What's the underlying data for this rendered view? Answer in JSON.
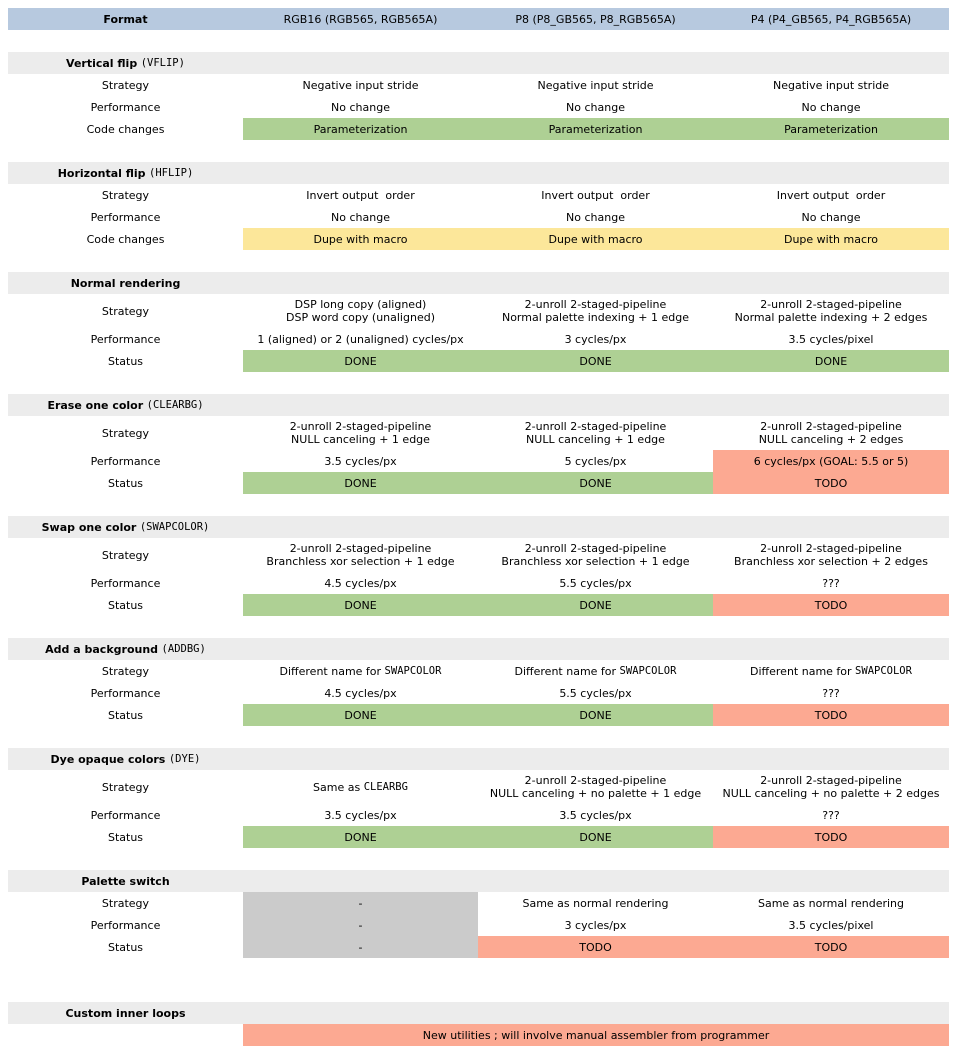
{
  "colors": {
    "header_bg": "#b7c9df",
    "section_bg": "#ececec",
    "done_green": "#aed094",
    "macro_yellow": "#fce79a",
    "todo_red": "#fca992",
    "na_gray": "#cbcbcb"
  },
  "header": {
    "format_label": "Format",
    "col1": {
      "name": "RGB16",
      "variants": "(RGB565, RGB565A)"
    },
    "col2": {
      "name": "P8",
      "variants": "(P8_GB565, P8_RGB565A)"
    },
    "col3": {
      "name": "P4",
      "variants": "(P4_GB565, P4_RGB565A)"
    }
  },
  "sections": {
    "vflip": {
      "title": "Vertical flip",
      "code": "(VFLIP)",
      "strategy": {
        "label": "Strategy",
        "rgb16": "Negative input stride",
        "p8": "Negative input stride",
        "p4": "Negative input stride"
      },
      "performance": {
        "label": "Performance",
        "rgb16": "No change",
        "p8": "No change",
        "p4": "No change"
      },
      "code_changes": {
        "label": "Code changes",
        "rgb16": "Parameterization",
        "p8": "Parameterization",
        "p4": "Parameterization"
      }
    },
    "hflip": {
      "title": "Horizontal flip",
      "code": "(HFLIP)",
      "strategy": {
        "label": "Strategy",
        "rgb16": "Invert output  order",
        "p8": "Invert output  order",
        "p4": "Invert output  order"
      },
      "performance": {
        "label": "Performance",
        "rgb16": "No change",
        "p8": "No change",
        "p4": "No change"
      },
      "code_changes": {
        "label": "Code changes",
        "rgb16": "Dupe with macro",
        "p8": "Dupe with macro",
        "p4": "Dupe with macro"
      }
    },
    "normal": {
      "title": "Normal rendering",
      "strategy": {
        "label": "Strategy",
        "rgb16": "DSP long copy (aligned)\nDSP word copy (unaligned)",
        "p8": "2-unroll 2-staged-pipeline\nNormal palette indexing + 1 edge",
        "p4": "2-unroll 2-staged-pipeline\nNormal palette indexing + 2 edges"
      },
      "performance": {
        "label": "Performance",
        "rgb16": "1 (aligned) or 2 (unaligned) cycles/px",
        "p8": "3 cycles/px",
        "p4": "3.5 cycles/pixel"
      },
      "status": {
        "label": "Status",
        "rgb16": "DONE",
        "p8": "DONE",
        "p4": "DONE"
      }
    },
    "clearbg": {
      "title": "Erase one color",
      "code": "(CLEARBG)",
      "strategy": {
        "label": "Strategy",
        "rgb16": "2-unroll 2-staged-pipeline\nNULL canceling + 1 edge",
        "p8": "2-unroll 2-staged-pipeline\nNULL canceling + 1 edge",
        "p4": "2-unroll 2-staged-pipeline\nNULL canceling + 2 edges"
      },
      "performance": {
        "label": "Performance",
        "rgb16": "3.5 cycles/px",
        "p8": "5 cycles/px",
        "p4": "6 cycles/px (GOAL: 5.5 or 5)"
      },
      "status": {
        "label": "Status",
        "rgb16": "DONE",
        "p8": "DONE",
        "p4": "TODO"
      }
    },
    "swapcolor": {
      "title": "Swap one color",
      "code": "(SWAPCOLOR)",
      "strategy": {
        "label": "Strategy",
        "rgb16": "2-unroll 2-staged-pipeline\nBranchless xor selection + 1 edge",
        "p8": "2-unroll 2-staged-pipeline\nBranchless xor selection + 1 edge",
        "p4": "2-unroll 2-staged-pipeline\nBranchless xor selection + 2 edges"
      },
      "performance": {
        "label": "Performance",
        "rgb16": "4.5 cycles/px",
        "p8": "5.5 cycles/px",
        "p4": "???"
      },
      "status": {
        "label": "Status",
        "rgb16": "DONE",
        "p8": "DONE",
        "p4": "TODO"
      }
    },
    "addbg": {
      "title": "Add a background",
      "code": "(ADDBG)",
      "strategy": {
        "label": "Strategy",
        "prefix": "Different name for ",
        "code": "SWAPCOLOR"
      },
      "performance": {
        "label": "Performance",
        "rgb16": "4.5 cycles/px",
        "p8": "5.5 cycles/px",
        "p4": "???"
      },
      "status": {
        "label": "Status",
        "rgb16": "DONE",
        "p8": "DONE",
        "p4": "TODO"
      }
    },
    "dye": {
      "title": "Dye opaque colors",
      "code": "(DYE)",
      "strategy": {
        "label": "Strategy",
        "rgb16_prefix": "Same as ",
        "rgb16_code": "CLEARBG",
        "p8": "2-unroll 2-staged-pipeline\nNULL canceling + no palette + 1 edge",
        "p4": "2-unroll 2-staged-pipeline\nNULL canceling + no palette + 2 edges"
      },
      "performance": {
        "label": "Performance",
        "rgb16": "3.5 cycles/px",
        "p8": "3.5 cycles/px",
        "p4": "???"
      },
      "status": {
        "label": "Status",
        "rgb16": "DONE",
        "p8": "DONE",
        "p4": "TODO"
      }
    },
    "palette_switch": {
      "title": "Palette switch",
      "strategy": {
        "label": "Strategy",
        "rgb16": "-",
        "p8": "Same as normal rendering",
        "p4": "Same as normal rendering"
      },
      "performance": {
        "label": "Performance",
        "rgb16": "-",
        "p8": "3 cycles/px",
        "p4": "3.5 cycles/pixel"
      },
      "status": {
        "label": "Status",
        "rgb16": "-",
        "p8": "TODO",
        "p4": "TODO"
      }
    },
    "custom": {
      "title": "Custom inner loops",
      "note": "New utilities ; will involve manual assembler from programmer"
    }
  }
}
